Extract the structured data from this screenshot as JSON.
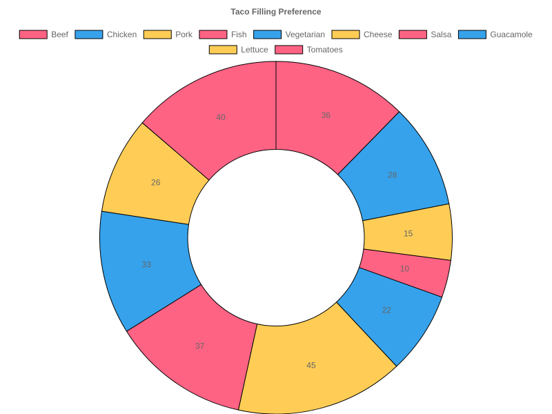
{
  "chart_data": {
    "type": "pie",
    "variant": "doughnut",
    "title": "Taco Filling Preference",
    "legend_position": "top",
    "categories": [
      "Beef",
      "Chicken",
      "Pork",
      "Fish",
      "Vegetarian",
      "Cheese",
      "Salsa",
      "Guacamole",
      "Lettuce",
      "Tomatoes"
    ],
    "values": [
      36,
      28,
      15,
      10,
      22,
      45,
      37,
      33,
      26,
      40
    ],
    "colors": [
      "#ff6384",
      "#36a2eb",
      "#ffcd56",
      "#ff6384",
      "#36a2eb",
      "#ffcd56",
      "#ff6384",
      "#36a2eb",
      "#ffcd56",
      "#ff6384"
    ],
    "border_color": "#000000"
  }
}
